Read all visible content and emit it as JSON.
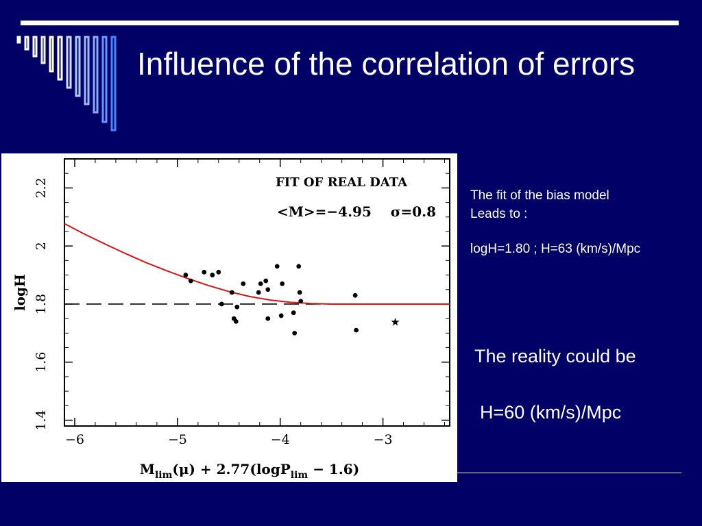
{
  "slide": {
    "title": "Influence of the correlation of errors",
    "colors": {
      "background": "#000066",
      "accent": "#ffffff",
      "fit_line": "#dd1111"
    }
  },
  "notes": {
    "line1": "The fit of the bias model",
    "line2": "Leads to :",
    "result": "logH=1.80 ; H=63 (km/s)/Mpc"
  },
  "reality": {
    "line1": "The reality could be",
    "line2": "H=60 (km/s)/Mpc"
  },
  "chart_data": {
    "type": "scatter",
    "title": "FIT OF REAL DATA",
    "annotation": "<M>=−4.95    σ=0.8",
    "xlabel": "M_lim(μ) + 2.77(logP_lim − 1.6)",
    "xlabel_parts": {
      "m": "M",
      "m_sub": "lim",
      "mid": "(μ) + 2.77(logP",
      "p_sub": "lim",
      "end": " − 1.6)"
    },
    "ylabel": "logH",
    "xlim": [
      -6.1,
      -2.35
    ],
    "ylim": [
      1.38,
      2.3
    ],
    "xticks": [
      -6,
      -5,
      -4,
      -3
    ],
    "xtick_labels": [
      "−6",
      "−5",
      "−4",
      "−3"
    ],
    "yticks": [
      1.4,
      1.6,
      1.8,
      2,
      2.2
    ],
    "ytick_labels": [
      "1.4",
      "1.6",
      "1.8",
      "2",
      "2.2"
    ],
    "reference_line": {
      "y": 1.8,
      "style": "dashed"
    },
    "fit_curve": {
      "x": [
        -6.1,
        -5.9,
        -5.7,
        -5.5,
        -5.3,
        -5.1,
        -4.9,
        -4.7,
        -4.5,
        -4.3,
        -4.1,
        -3.9,
        -3.7,
        -3.5,
        -3.3,
        -3.0,
        -2.7,
        -2.35
      ],
      "y": [
        2.077,
        2.04,
        2.006,
        1.973,
        1.942,
        1.914,
        1.888,
        1.864,
        1.843,
        1.826,
        1.814,
        1.806,
        1.802,
        1.8,
        1.8,
        1.8,
        1.8,
        1.8
      ]
    },
    "points": {
      "x": [
        -4.92,
        -4.87,
        -4.74,
        -4.66,
        -4.6,
        -4.57,
        -4.47,
        -4.45,
        -4.43,
        -4.42,
        -4.36,
        -4.21,
        -4.19,
        -4.14,
        -4.12,
        -4.12,
        -4.03,
        -3.99,
        -3.98,
        -3.87,
        -3.86,
        -3.82,
        -3.81,
        -3.8,
        -3.27,
        -3.26
      ],
      "y": [
        1.9,
        1.88,
        1.91,
        1.9,
        1.91,
        1.8,
        1.84,
        1.75,
        1.74,
        1.79,
        1.87,
        1.84,
        1.87,
        1.88,
        1.75,
        1.85,
        1.93,
        1.76,
        1.87,
        1.77,
        1.7,
        1.93,
        1.84,
        1.81,
        1.83,
        1.71
      ]
    },
    "star": {
      "x": -2.88,
      "y": 1.74
    },
    "grid": false,
    "legend": "none"
  }
}
